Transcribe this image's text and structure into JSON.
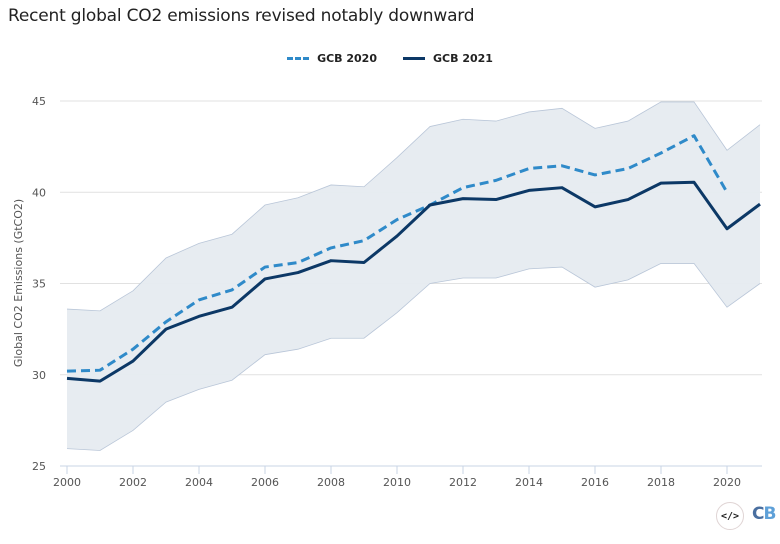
{
  "chart_data": {
    "type": "line",
    "title": "Recent global CO2 emissions revised notably downward",
    "xlabel": "",
    "ylabel": "Global CO2 Emissions (GtCO2)",
    "ylim": [
      25,
      45
    ],
    "xlim": [
      2000,
      2021
    ],
    "yticks": [
      "25",
      "30",
      "35",
      "40",
      "45"
    ],
    "xticks": [
      "2000",
      "2002",
      "2004",
      "2006",
      "2008",
      "2010",
      "2012",
      "2014",
      "2016",
      "2018",
      "2020"
    ],
    "grid": true,
    "legend_position": "top-center",
    "x": [
      2000,
      2001,
      2002,
      2003,
      2004,
      2005,
      2006,
      2007,
      2008,
      2009,
      2010,
      2011,
      2012,
      2013,
      2014,
      2015,
      2016,
      2017,
      2018,
      2019,
      2020,
      2021
    ],
    "series": [
      {
        "name": "GCB 2020",
        "style": "dashed",
        "color": "#2f8ac9",
        "values": [
          30.2,
          30.25,
          31.4,
          32.9,
          34.1,
          34.65,
          35.9,
          36.15,
          36.95,
          37.35,
          38.5,
          39.3,
          40.25,
          40.65,
          41.3,
          41.45,
          40.95,
          41.3,
          42.15,
          43.1,
          40.0,
          null
        ]
      },
      {
        "name": "GCB 2021",
        "style": "solid",
        "color": "#0c3866",
        "values": [
          29.8,
          29.65,
          30.75,
          32.5,
          33.2,
          33.7,
          35.25,
          35.6,
          36.25,
          36.15,
          37.6,
          39.3,
          39.65,
          39.6,
          40.1,
          40.25,
          39.2,
          39.6,
          40.5,
          40.55,
          38.0,
          39.35
        ]
      }
    ],
    "uncertainty_band": {
      "color": "#e6ebf0",
      "upper": [
        33.6,
        33.5,
        34.6,
        36.4,
        37.2,
        37.7,
        39.3,
        39.7,
        40.4,
        40.3,
        41.9,
        43.6,
        44.0,
        43.9,
        44.4,
        44.6,
        43.5,
        43.9,
        44.95,
        44.95,
        42.3,
        43.7
      ],
      "lower": [
        25.95,
        25.85,
        26.95,
        28.5,
        29.2,
        29.7,
        31.1,
        31.4,
        32.0,
        32.0,
        33.4,
        35.0,
        35.3,
        35.3,
        35.8,
        35.9,
        34.8,
        35.2,
        36.1,
        36.1,
        33.7,
        35.0
      ]
    }
  },
  "legend": {
    "items": [
      {
        "label": "GCB 2020"
      },
      {
        "label": "GCB 2021"
      }
    ]
  },
  "branding": {
    "embed_icon": "</>",
    "logo_c": "C",
    "logo_b": "B"
  }
}
